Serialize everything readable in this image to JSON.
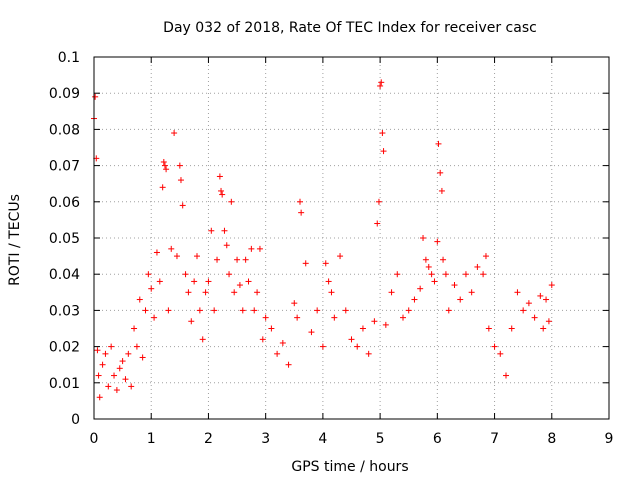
{
  "chart_data": {
    "type": "scatter",
    "title": "Day 032 of 2018, Rate Of TEC Index for receiver casc",
    "xlabel": "GPS time / hours",
    "ylabel": "ROTI / TECUs",
    "xlim": [
      0,
      9
    ],
    "ylim": [
      0,
      0.1
    ],
    "x_ticks": [
      0,
      1,
      2,
      3,
      4,
      5,
      6,
      7,
      8,
      9
    ],
    "x_tick_labels": [
      "0",
      "1",
      "2",
      "3",
      "4",
      "5",
      "6",
      "7",
      "8",
      "9"
    ],
    "y_ticks": [
      0,
      0.01,
      0.02,
      0.03,
      0.04,
      0.05,
      0.06,
      0.07,
      0.08,
      0.09,
      0.1
    ],
    "y_tick_labels": [
      "0",
      "0.01",
      "0.02",
      "0.03",
      "0.04",
      "0.05",
      "0.06",
      "0.07",
      "0.08",
      "0.09",
      "0.1"
    ],
    "grid": true,
    "marker": "+",
    "color": "#ff0000",
    "series": [
      {
        "name": "ROTI",
        "x": [
          0.0,
          0.02,
          0.04,
          0.06,
          0.08,
          0.1,
          0.15,
          0.2,
          0.25,
          0.3,
          0.35,
          0.4,
          0.45,
          0.5,
          0.55,
          0.6,
          0.65,
          0.7,
          0.75,
          0.8,
          0.85,
          0.9,
          0.95,
          1.0,
          1.05,
          1.1,
          1.15,
          1.2,
          1.22,
          1.24,
          1.26,
          1.3,
          1.35,
          1.4,
          1.45,
          1.5,
          1.52,
          1.55,
          1.6,
          1.65,
          1.7,
          1.75,
          1.8,
          1.85,
          1.9,
          1.95,
          2.0,
          2.05,
          2.1,
          2.15,
          2.2,
          2.22,
          2.24,
          2.28,
          2.32,
          2.36,
          2.4,
          2.45,
          2.5,
          2.55,
          2.6,
          2.65,
          2.7,
          2.75,
          2.8,
          2.85,
          2.9,
          2.95,
          3.0,
          3.1,
          3.2,
          3.3,
          3.4,
          3.5,
          3.55,
          3.6,
          3.62,
          3.7,
          3.8,
          3.9,
          4.0,
          4.05,
          4.1,
          4.15,
          4.2,
          4.3,
          4.4,
          4.5,
          4.6,
          4.7,
          4.8,
          4.9,
          4.95,
          4.98,
          5.0,
          5.02,
          5.04,
          5.06,
          5.1,
          5.2,
          5.3,
          5.4,
          5.5,
          5.6,
          5.7,
          5.75,
          5.8,
          5.85,
          5.9,
          5.95,
          6.0,
          6.02,
          6.05,
          6.08,
          6.1,
          6.15,
          6.2,
          6.3,
          6.4,
          6.5,
          6.6,
          6.7,
          6.8,
          6.85,
          6.9,
          7.0,
          7.1,
          7.2,
          7.3,
          7.4,
          7.5,
          7.6,
          7.7,
          7.8,
          7.85,
          7.9,
          7.95,
          8.0
        ],
        "y": [
          0.083,
          0.089,
          0.072,
          0.019,
          0.012,
          0.006,
          0.015,
          0.018,
          0.009,
          0.02,
          0.012,
          0.008,
          0.014,
          0.016,
          0.011,
          0.018,
          0.009,
          0.025,
          0.02,
          0.033,
          0.017,
          0.03,
          0.04,
          0.036,
          0.028,
          0.046,
          0.038,
          0.064,
          0.071,
          0.07,
          0.069,
          0.03,
          0.047,
          0.079,
          0.045,
          0.07,
          0.066,
          0.059,
          0.04,
          0.035,
          0.027,
          0.038,
          0.045,
          0.03,
          0.022,
          0.035,
          0.038,
          0.052,
          0.03,
          0.044,
          0.067,
          0.063,
          0.062,
          0.052,
          0.048,
          0.04,
          0.06,
          0.035,
          0.044,
          0.037,
          0.03,
          0.044,
          0.038,
          0.047,
          0.03,
          0.035,
          0.047,
          0.022,
          0.028,
          0.025,
          0.018,
          0.021,
          0.015,
          0.032,
          0.028,
          0.06,
          0.057,
          0.043,
          0.024,
          0.03,
          0.02,
          0.043,
          0.038,
          0.035,
          0.028,
          0.045,
          0.03,
          0.022,
          0.02,
          0.025,
          0.018,
          0.027,
          0.054,
          0.06,
          0.092,
          0.093,
          0.079,
          0.074,
          0.026,
          0.035,
          0.04,
          0.028,
          0.03,
          0.033,
          0.036,
          0.05,
          0.044,
          0.042,
          0.04,
          0.038,
          0.049,
          0.076,
          0.068,
          0.063,
          0.044,
          0.04,
          0.03,
          0.037,
          0.033,
          0.04,
          0.035,
          0.042,
          0.04,
          0.045,
          0.025,
          0.02,
          0.018,
          0.012,
          0.025,
          0.035,
          0.03,
          0.032,
          0.028,
          0.034,
          0.025,
          0.033,
          0.027,
          0.037
        ]
      }
    ]
  }
}
